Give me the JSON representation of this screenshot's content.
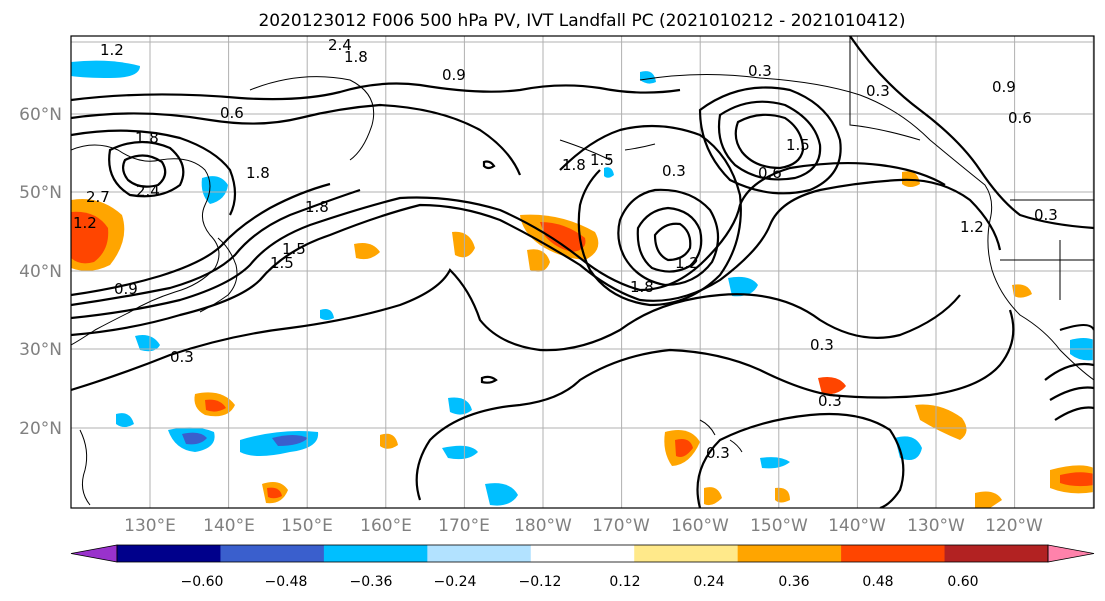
{
  "title": "2020123012 F006 500 hPa PV, IVT Landfall PC (2021010212 - 2021010412)",
  "axes": {
    "lat_labels": [
      "20°N",
      "30°N",
      "40°N",
      "50°N",
      "60°N"
    ],
    "lon_labels": [
      "130°E",
      "140°E",
      "150°E",
      "160°E",
      "170°E",
      "180°W",
      "170°W",
      "160°W",
      "150°W",
      "140°W",
      "130°W",
      "120°W"
    ]
  },
  "colorbar": {
    "tick_labels": [
      "−0.60",
      "−0.48",
      "−0.36",
      "−0.24",
      "−0.12",
      "0.12",
      "0.24",
      "0.36",
      "0.48",
      "0.60"
    ],
    "colors": [
      "#9932cc",
      "#00008b",
      "#3a5fcd",
      "#00bfff",
      "#b2e2ff",
      "#ffffff",
      "#ffe98a",
      "#ffa500",
      "#ff4500",
      "#b22222",
      "#ff82ab"
    ]
  },
  "contour_labels": [
    "1.2",
    "2.4",
    "1.8",
    "0.9",
    "0.6",
    "1.8",
    "1.2",
    "1.5",
    "0.3",
    "1.5",
    "1.8",
    "1.5",
    "0.6",
    "0.3",
    "0.9",
    "0.6",
    "0.3",
    "1.2",
    "0.3",
    "1.2",
    "2.4",
    "2.7",
    "0.9",
    "1.8",
    "1.5",
    "1.8",
    "0.3",
    "0.3",
    "0.3",
    "0.3",
    "1.8"
  ],
  "map": {
    "ocean_color": "#ffffff",
    "grid_color": "#b0b0b0",
    "contour_color": "#000000"
  }
}
